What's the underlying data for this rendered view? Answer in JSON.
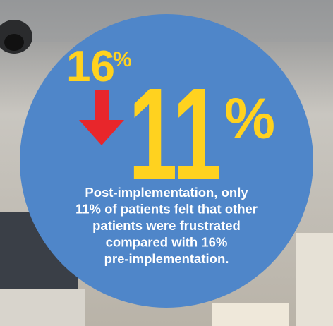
{
  "before": {
    "number": "16",
    "unit": "%"
  },
  "after": {
    "number": "11",
    "unit": "%"
  },
  "caption": [
    "Post-implementation, only",
    "11% of patients felt that other",
    "patients were frustrated",
    "compared with 16%",
    "pre-implementation."
  ]
}
